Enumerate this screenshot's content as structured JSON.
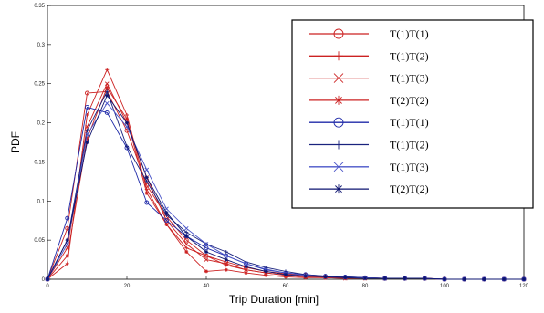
{
  "chart_data": {
    "type": "line",
    "title": "",
    "xlabel": "Trip Duration [min]",
    "ylabel": "PDF",
    "xlim": [
      0,
      120
    ],
    "ylim": [
      0,
      0.35
    ],
    "xticks": [
      0,
      20,
      40,
      60,
      80,
      100,
      120
    ],
    "yticks": [
      0,
      0.05,
      0.1,
      0.15,
      0.2,
      0.25,
      0.3,
      0.35
    ],
    "grid": false,
    "legend_position": "top-right",
    "x": [
      0,
      5,
      10,
      15,
      20,
      25,
      30,
      35,
      40,
      45,
      50,
      55,
      60,
      65,
      70,
      75,
      80,
      85,
      90,
      95,
      100,
      105,
      110,
      115,
      120
    ],
    "series": [
      {
        "name": "T(1)T(1)",
        "color": "#cc2222",
        "marker": "circle",
        "values": [
          0,
          0.065,
          0.238,
          0.24,
          0.19,
          0.12,
          0.08,
          0.05,
          0.03,
          0.022,
          0.015,
          0.01,
          0.007,
          0.005,
          0.003,
          0.002,
          0.002,
          0.001,
          0.001,
          0.001,
          0,
          0,
          0,
          0,
          0
        ]
      },
      {
        "name": "T(1)T(2)",
        "color": "#cc2222",
        "marker": "plus",
        "values": [
          0,
          0.02,
          0.21,
          0.268,
          0.21,
          0.115,
          0.07,
          0.04,
          0.03,
          0.018,
          0.012,
          0.008,
          0.005,
          0.003,
          0.002,
          0.002,
          0.001,
          0.001,
          0.001,
          0.001,
          0,
          0,
          0,
          0,
          0
        ]
      },
      {
        "name": "T(1)T(3)",
        "color": "#cc2222",
        "marker": "x",
        "values": [
          0,
          0.04,
          0.195,
          0.25,
          0.2,
          0.13,
          0.075,
          0.045,
          0.025,
          0.02,
          0.012,
          0.008,
          0.005,
          0.003,
          0.002,
          0.001,
          0.001,
          0.001,
          0.001,
          0.001,
          0,
          0,
          0,
          0,
          0
        ]
      },
      {
        "name": "T(2)T(2)",
        "color": "#cc2222",
        "marker": "asterisk",
        "values": [
          0,
          0.03,
          0.18,
          0.245,
          0.205,
          0.11,
          0.07,
          0.035,
          0.01,
          0.012,
          0.008,
          0.005,
          0.003,
          0.002,
          0.002,
          0.001,
          0.001,
          0.001,
          0.001,
          0.001,
          0,
          0,
          0,
          0,
          0
        ]
      },
      {
        "name": "T(1)T(1)",
        "color": "#1f2aa8",
        "marker": "circle",
        "values": [
          0,
          0.078,
          0.22,
          0.213,
          0.168,
          0.098,
          0.075,
          0.055,
          0.04,
          0.03,
          0.02,
          0.012,
          0.008,
          0.006,
          0.004,
          0.003,
          0.002,
          0.001,
          0.001,
          0.001,
          0,
          0,
          0,
          0,
          0
        ]
      },
      {
        "name": "T(1)T(2)",
        "color": "#1a237e",
        "marker": "plus",
        "values": [
          0,
          0.05,
          0.19,
          0.24,
          0.17,
          0.125,
          0.082,
          0.06,
          0.045,
          0.035,
          0.022,
          0.015,
          0.01,
          0.006,
          0.004,
          0.003,
          0.002,
          0.001,
          0.001,
          0.001,
          0,
          0,
          0,
          0,
          0
        ]
      },
      {
        "name": "T(1)T(3)",
        "color": "#4a55c8",
        "marker": "x",
        "values": [
          0,
          0.045,
          0.185,
          0.225,
          0.195,
          0.14,
          0.09,
          0.065,
          0.045,
          0.03,
          0.02,
          0.013,
          0.008,
          0.005,
          0.003,
          0.002,
          0.002,
          0.001,
          0.001,
          0.001,
          0,
          0,
          0,
          0,
          0
        ]
      },
      {
        "name": "T(2)T(2)",
        "color": "#0d1470",
        "marker": "asterisk",
        "values": [
          0,
          0.05,
          0.175,
          0.235,
          0.2,
          0.13,
          0.085,
          0.055,
          0.035,
          0.025,
          0.016,
          0.01,
          0.006,
          0.004,
          0.003,
          0.002,
          0.001,
          0.001,
          0.001,
          0.001,
          0,
          0,
          0,
          0,
          0
        ]
      }
    ]
  }
}
